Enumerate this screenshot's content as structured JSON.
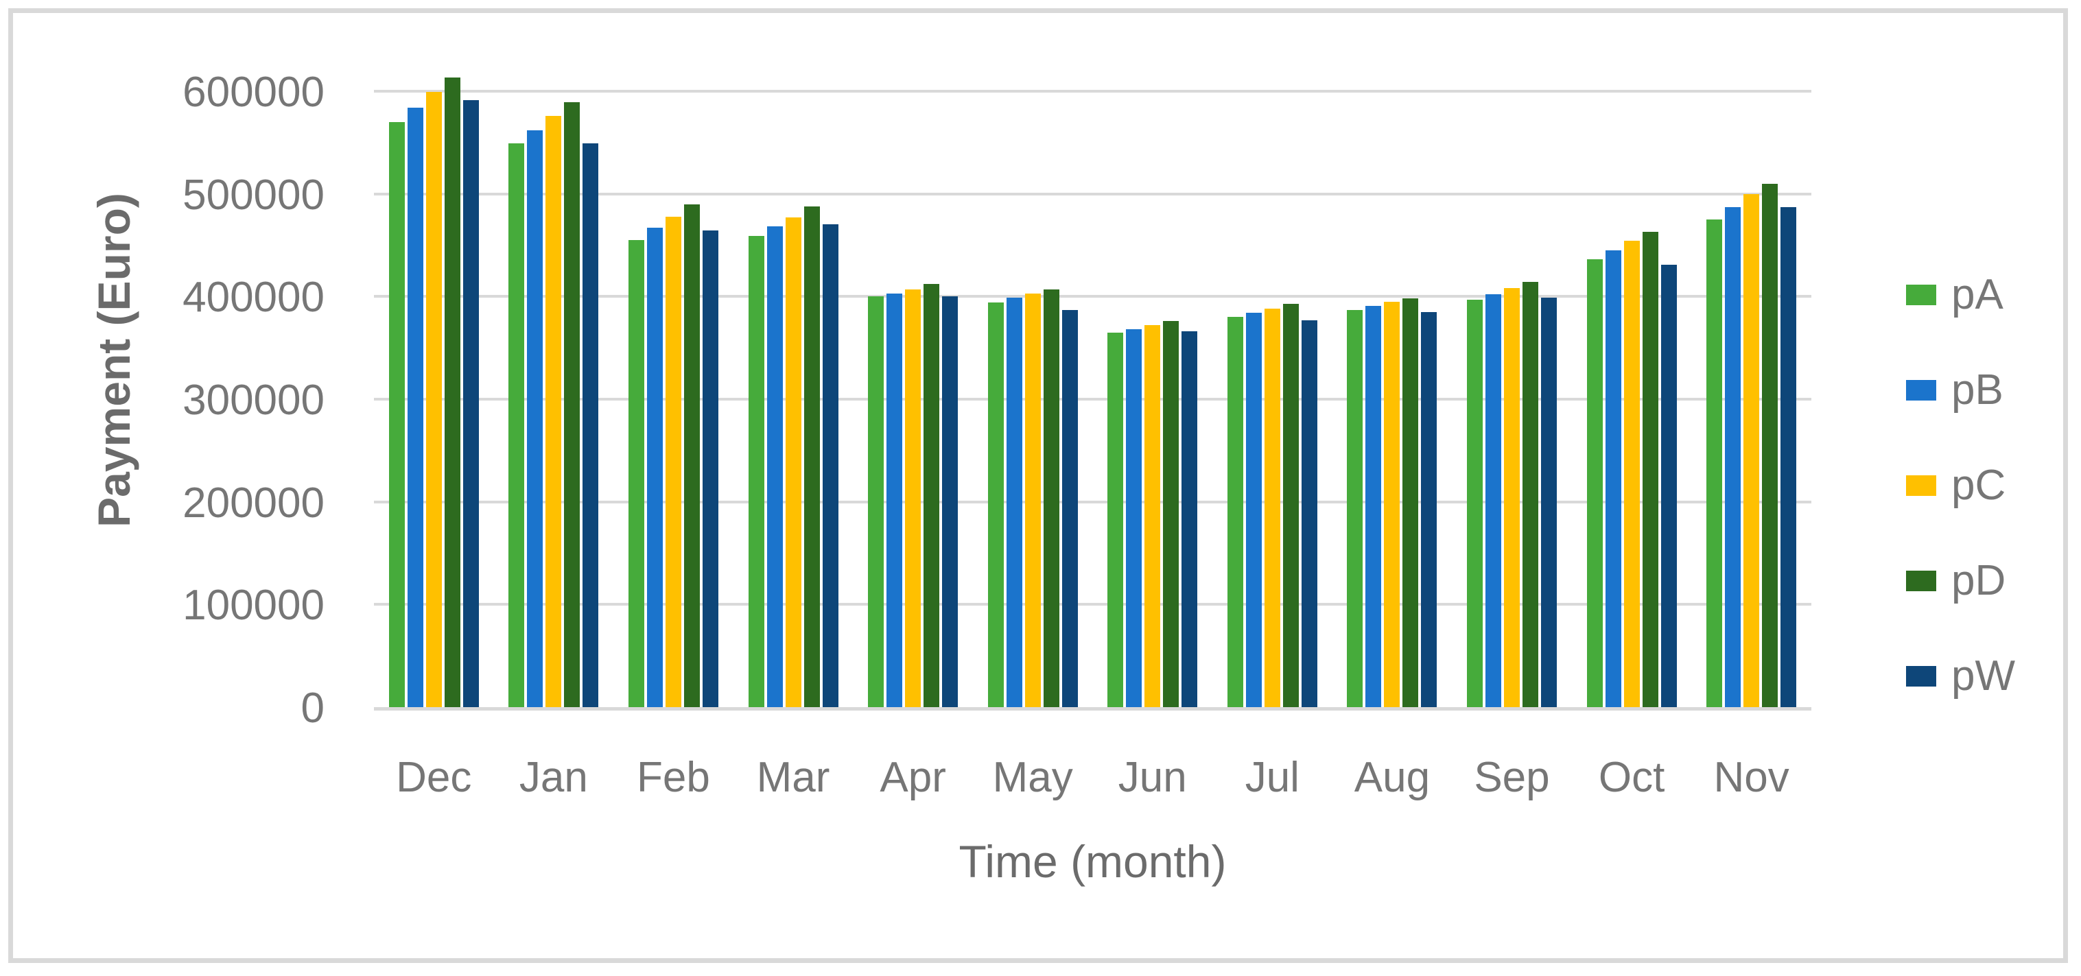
{
  "frame": {
    "border_color": "#D9D9D9",
    "background": "#FFFFFF"
  },
  "chart_data": {
    "type": "bar",
    "title": "",
    "xlabel": "Time (month)",
    "ylabel": "Payment (Euro)",
    "categories": [
      "Dec",
      "Jan",
      "Feb",
      "Mar",
      "Apr",
      "May",
      "Jun",
      "Jul",
      "Aug",
      "Sep",
      "Oct",
      "Nov"
    ],
    "series": [
      {
        "name": "pA",
        "color": "#46AB3B",
        "values": [
          570000,
          549000,
          455000,
          459000,
          400000,
          394000,
          365000,
          380000,
          387000,
          397000,
          436000,
          475000
        ]
      },
      {
        "name": "pB",
        "color": "#1B74CC",
        "values": [
          584000,
          562000,
          467000,
          468000,
          403000,
          399000,
          368000,
          384000,
          391000,
          402000,
          445000,
          487000
        ]
      },
      {
        "name": "pC",
        "color": "#FFC000",
        "values": [
          599000,
          576000,
          478000,
          477000,
          407000,
          403000,
          372000,
          388000,
          395000,
          408000,
          454000,
          500000
        ]
      },
      {
        "name": "pD",
        "color": "#2D6B1F",
        "values": [
          613000,
          589000,
          490000,
          488000,
          412000,
          407000,
          376000,
          393000,
          398000,
          414000,
          463000,
          510000
        ]
      },
      {
        "name": "pW",
        "color": "#0E4679",
        "values": [
          591000,
          549000,
          464000,
          470000,
          400000,
          387000,
          366000,
          377000,
          385000,
          399000,
          431000,
          487000
        ]
      }
    ],
    "ylim": [
      0,
      650000
    ],
    "yticks": [
      0,
      100000,
      200000,
      300000,
      400000,
      500000,
      600000
    ],
    "grid": true,
    "gridline_color": "#D9D9D9",
    "legend_position": "right"
  }
}
